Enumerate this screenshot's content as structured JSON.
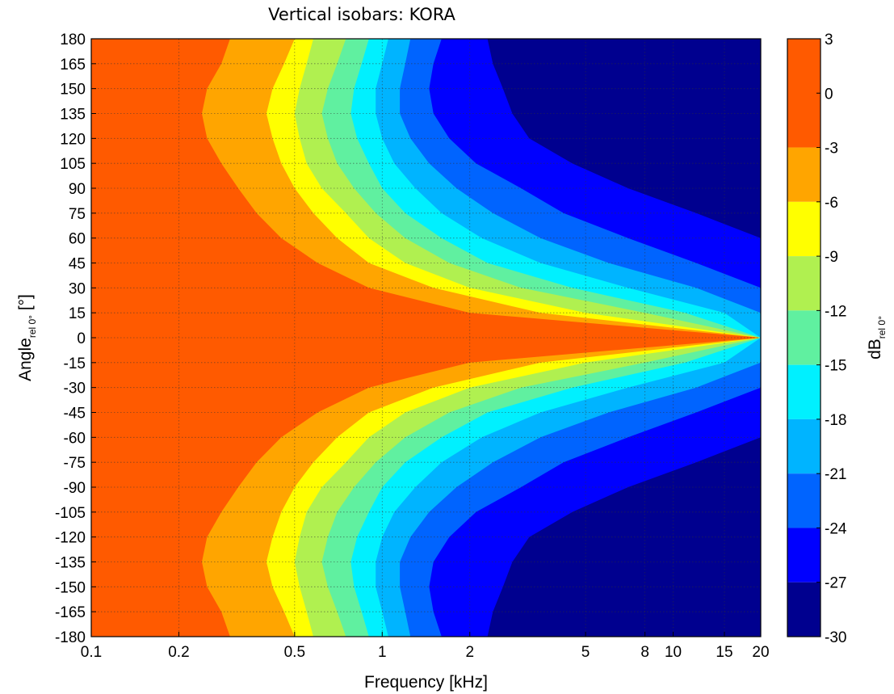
{
  "chart_data": {
    "type": "heatmap",
    "title": "Vertical isobars: KORA",
    "xlabel": "Frequency [kHz]",
    "x_scale": "log",
    "xlim": [
      0.1,
      20
    ],
    "x_ticks": [
      0.1,
      0.2,
      0.5,
      1,
      2,
      5,
      8,
      10,
      15,
      20
    ],
    "x_tick_labels": [
      "0.1",
      "0.2",
      "0.5",
      "1",
      "2",
      "5",
      "8",
      "10",
      "15",
      "20"
    ],
    "ylabel": "Angle",
    "ylabel_sub": "rel 0°",
    "ylabel_unit": "[°]",
    "ylim": [
      -180,
      180
    ],
    "y_ticks": [
      180,
      165,
      150,
      135,
      120,
      105,
      90,
      75,
      60,
      45,
      30,
      15,
      0,
      -15,
      -30,
      -45,
      -60,
      -75,
      -90,
      -105,
      -120,
      -135,
      -150,
      -165,
      -180
    ],
    "grid": true,
    "colorbar": {
      "label": "dB",
      "label_sub": "rel 0°",
      "range": [
        -30,
        3
      ],
      "tick_labels": [
        "3",
        "0",
        "-3",
        "-6",
        "-9",
        "-12",
        "-15",
        "-18",
        "-21",
        "-24",
        "-27",
        "-30"
      ],
      "levels": [
        {
          "from": -3,
          "to": 3,
          "color": "#ff5a00"
        },
        {
          "from": -6,
          "to": -3,
          "color": "#ffa500"
        },
        {
          "from": -9,
          "to": -6,
          "color": "#ffff00"
        },
        {
          "from": -12,
          "to": -9,
          "color": "#b0f050"
        },
        {
          "from": -15,
          "to": -12,
          "color": "#60f0a0"
        },
        {
          "from": -18,
          "to": -15,
          "color": "#00f0ff"
        },
        {
          "from": -21,
          "to": -18,
          "color": "#00b4ff"
        },
        {
          "from": -24,
          "to": -21,
          "color": "#0064ff"
        },
        {
          "from": -27,
          "to": -24,
          "color": "#0000ff"
        },
        {
          "from": -30,
          "to": -27,
          "color": "#00008f"
        }
      ]
    },
    "contours": {
      "description": "Frequency (kHz) at which the response falls below each level, for |angle| in degrees",
      "angles": [
        180,
        165,
        150,
        135,
        120,
        105,
        90,
        75,
        60,
        45,
        30,
        15,
        0
      ],
      "edges": [
        {
          "level": -3,
          "freq_khz": [
            0.3,
            0.28,
            0.25,
            0.24,
            0.25,
            0.28,
            0.32,
            0.37,
            0.45,
            0.6,
            0.9,
            2.0,
            20
          ]
        },
        {
          "level": -6,
          "freq_khz": [
            0.5,
            0.46,
            0.42,
            0.4,
            0.42,
            0.45,
            0.5,
            0.58,
            0.7,
            0.9,
            1.5,
            3.5,
            20
          ]
        },
        {
          "level": -9,
          "freq_khz": [
            0.58,
            0.55,
            0.52,
            0.5,
            0.52,
            0.55,
            0.62,
            0.75,
            0.9,
            1.2,
            2.0,
            5.0,
            20
          ]
        },
        {
          "level": -12,
          "freq_khz": [
            0.75,
            0.7,
            0.65,
            0.62,
            0.65,
            0.7,
            0.8,
            0.95,
            1.2,
            1.7,
            3.0,
            8.0,
            20
          ]
        },
        {
          "level": -15,
          "freq_khz": [
            0.9,
            0.85,
            0.8,
            0.78,
            0.82,
            0.9,
            1.0,
            1.2,
            1.6,
            2.3,
            4.5,
            11.0,
            20
          ]
        },
        {
          "level": -18,
          "freq_khz": [
            1.05,
            1.0,
            0.95,
            0.95,
            1.0,
            1.1,
            1.3,
            1.6,
            2.2,
            3.5,
            7.0,
            15.0,
            20
          ]
        },
        {
          "level": -21,
          "freq_khz": [
            1.25,
            1.2,
            1.15,
            1.15,
            1.25,
            1.45,
            1.8,
            2.4,
            3.5,
            6.0,
            12.0,
            20,
            20
          ]
        },
        {
          "level": -24,
          "freq_khz": [
            1.6,
            1.5,
            1.45,
            1.5,
            1.7,
            2.1,
            3.0,
            4.2,
            7.0,
            12.0,
            20,
            20,
            20
          ]
        },
        {
          "level": -27,
          "freq_khz": [
            2.3,
            2.4,
            2.6,
            2.8,
            3.2,
            4.5,
            7.0,
            12.0,
            20,
            20,
            20,
            20,
            20
          ]
        }
      ]
    }
  }
}
